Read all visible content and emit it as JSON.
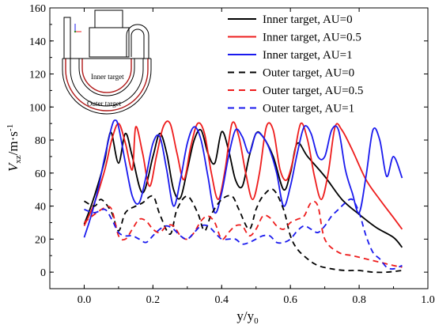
{
  "chart_data": {
    "type": "line",
    "xlabel": "y/y",
    "xlabel_sub": "0",
    "ylabel_main": "V",
    "ylabel_sub": "xz",
    "ylabel_unit": "/m·s",
    "ylabel_sup": "-1",
    "xlim": [
      -0.1,
      1.0
    ],
    "ylim": [
      -10,
      160
    ],
    "xticks": [
      0.0,
      0.2,
      0.4,
      0.6,
      0.8,
      1.0
    ],
    "xtick_labels": [
      "0.0",
      "0.2",
      "0.4",
      "0.6",
      "0.8",
      "1.0"
    ],
    "yticks": [
      0,
      20,
      40,
      60,
      80,
      100,
      120,
      140,
      160
    ],
    "ytick_labels": [
      "0",
      "20",
      "40",
      "60",
      "80",
      "100",
      "120",
      "140",
      "160"
    ],
    "grid": false,
    "legend_position": "top-right",
    "series": [
      {
        "name": "Inner target, AU=0",
        "color": "#000000",
        "dash": "solid",
        "x": [
          0.0,
          0.02,
          0.04,
          0.06,
          0.07,
          0.08,
          0.1,
          0.12,
          0.14,
          0.17,
          0.2,
          0.22,
          0.24,
          0.26,
          0.28,
          0.3,
          0.32,
          0.34,
          0.36,
          0.38,
          0.4,
          0.42,
          0.44,
          0.46,
          0.48,
          0.5,
          0.52,
          0.55,
          0.58,
          0.6,
          0.62,
          0.65,
          0.7,
          0.75,
          0.8,
          0.85,
          0.9,
          0.925
        ],
        "y": [
          29,
          40,
          53,
          68,
          80,
          84,
          66,
          84,
          70,
          48,
          70,
          84,
          72,
          50,
          45,
          62,
          80,
          86,
          72,
          66,
          85,
          74,
          56,
          52,
          70,
          84,
          82,
          70,
          50,
          60,
          78,
          70,
          58,
          44,
          35,
          27,
          21,
          15
        ]
      },
      {
        "name": "Inner target, AU=0.5",
        "color": "#ee1c1c",
        "dash": "solid",
        "x": [
          0.0,
          0.03,
          0.06,
          0.08,
          0.1,
          0.12,
          0.14,
          0.15,
          0.17,
          0.19,
          0.21,
          0.23,
          0.25,
          0.27,
          0.29,
          0.31,
          0.33,
          0.35,
          0.37,
          0.39,
          0.41,
          0.43,
          0.45,
          0.47,
          0.49,
          0.51,
          0.53,
          0.55,
          0.57,
          0.59,
          0.61,
          0.63,
          0.65,
          0.67,
          0.69,
          0.71,
          0.73,
          0.75,
          0.78,
          0.82,
          0.86,
          0.9,
          0.925
        ],
        "y": [
          28,
          42,
          62,
          80,
          90,
          78,
          62,
          88,
          72,
          52,
          70,
          88,
          90,
          72,
          56,
          76,
          90,
          84,
          60,
          44,
          62,
          90,
          82,
          60,
          44,
          60,
          88,
          86,
          62,
          56,
          70,
          90,
          80,
          58,
          44,
          60,
          88,
          86,
          74,
          56,
          44,
          33,
          26
        ]
      },
      {
        "name": "Inner target, AU=1",
        "color": "#1a1aee",
        "dash": "solid",
        "x": [
          0.0,
          0.02,
          0.04,
          0.06,
          0.08,
          0.09,
          0.1,
          0.12,
          0.14,
          0.16,
          0.18,
          0.2,
          0.22,
          0.24,
          0.26,
          0.28,
          0.3,
          0.32,
          0.34,
          0.36,
          0.38,
          0.4,
          0.42,
          0.44,
          0.46,
          0.48,
          0.5,
          0.52,
          0.54,
          0.56,
          0.58,
          0.6,
          0.62,
          0.64,
          0.66,
          0.68,
          0.7,
          0.72,
          0.74,
          0.76,
          0.78,
          0.8,
          0.82,
          0.84,
          0.86,
          0.88,
          0.9,
          0.925
        ],
        "y": [
          21,
          34,
          50,
          70,
          88,
          92,
          88,
          66,
          46,
          42,
          58,
          78,
          82,
          62,
          40,
          56,
          78,
          88,
          80,
          58,
          36,
          48,
          70,
          86,
          82,
          72,
          84,
          82,
          74,
          60,
          40,
          52,
          72,
          88,
          84,
          70,
          70,
          86,
          86,
          62,
          48,
          36,
          58,
          86,
          80,
          58,
          70,
          57
        ]
      },
      {
        "name": "Outer target, AU=0",
        "color": "#000000",
        "dash": "dashed",
        "x": [
          0.0,
          0.03,
          0.05,
          0.08,
          0.1,
          0.12,
          0.15,
          0.17,
          0.2,
          0.22,
          0.25,
          0.27,
          0.3,
          0.33,
          0.35,
          0.37,
          0.4,
          0.43,
          0.45,
          0.48,
          0.5,
          0.52,
          0.55,
          0.58,
          0.6,
          0.62,
          0.65,
          0.68,
          0.72,
          0.76,
          0.8,
          0.84,
          0.88,
          0.925
        ],
        "y": [
          43,
          40,
          44,
          36,
          25,
          36,
          40,
          42,
          46,
          35,
          23,
          38,
          46,
          36,
          25,
          35,
          44,
          46,
          38,
          26,
          38,
          46,
          50,
          38,
          22,
          14,
          8,
          4,
          2,
          1,
          1,
          0,
          0,
          1
        ]
      },
      {
        "name": "Outer target, AU=0.5",
        "color": "#ee1c1c",
        "dash": "dashed",
        "x": [
          0.0,
          0.03,
          0.06,
          0.08,
          0.1,
          0.12,
          0.14,
          0.16,
          0.18,
          0.2,
          0.22,
          0.24,
          0.26,
          0.28,
          0.3,
          0.32,
          0.34,
          0.36,
          0.38,
          0.4,
          0.42,
          0.44,
          0.46,
          0.48,
          0.5,
          0.52,
          0.54,
          0.56,
          0.58,
          0.6,
          0.62,
          0.64,
          0.66,
          0.68,
          0.7,
          0.74,
          0.78,
          0.82,
          0.86,
          0.9,
          0.925
        ],
        "y": [
          30,
          35,
          39,
          38,
          22,
          20,
          26,
          32,
          31,
          26,
          24,
          28,
          28,
          22,
          20,
          24,
          31,
          34,
          30,
          20,
          24,
          28,
          28,
          22,
          26,
          34,
          33,
          28,
          26,
          30,
          32,
          34,
          42,
          40,
          20,
          12,
          10,
          8,
          6,
          4,
          3
        ]
      },
      {
        "name": "Outer target, AU=1",
        "color": "#1a1aee",
        "dash": "dashed",
        "x": [
          0.0,
          0.03,
          0.06,
          0.08,
          0.1,
          0.12,
          0.14,
          0.16,
          0.18,
          0.2,
          0.22,
          0.24,
          0.26,
          0.28,
          0.3,
          0.32,
          0.34,
          0.36,
          0.38,
          0.4,
          0.42,
          0.44,
          0.46,
          0.48,
          0.5,
          0.52,
          0.54,
          0.56,
          0.58,
          0.6,
          0.62,
          0.64,
          0.66,
          0.68,
          0.7,
          0.72,
          0.74,
          0.76,
          0.78,
          0.8,
          0.82,
          0.84,
          0.86,
          0.88,
          0.9,
          0.925
        ],
        "y": [
          38,
          36,
          38,
          32,
          24,
          22,
          22,
          20,
          18,
          22,
          26,
          28,
          26,
          22,
          20,
          24,
          28,
          28,
          24,
          20,
          20,
          20,
          17,
          18,
          20,
          22,
          22,
          18,
          18,
          20,
          25,
          28,
          26,
          24,
          28,
          34,
          38,
          42,
          44,
          36,
          22,
          12,
          8,
          3,
          2,
          4
        ]
      }
    ],
    "inset": {
      "labels": [
        "Inner target",
        "Outer target"
      ]
    }
  }
}
